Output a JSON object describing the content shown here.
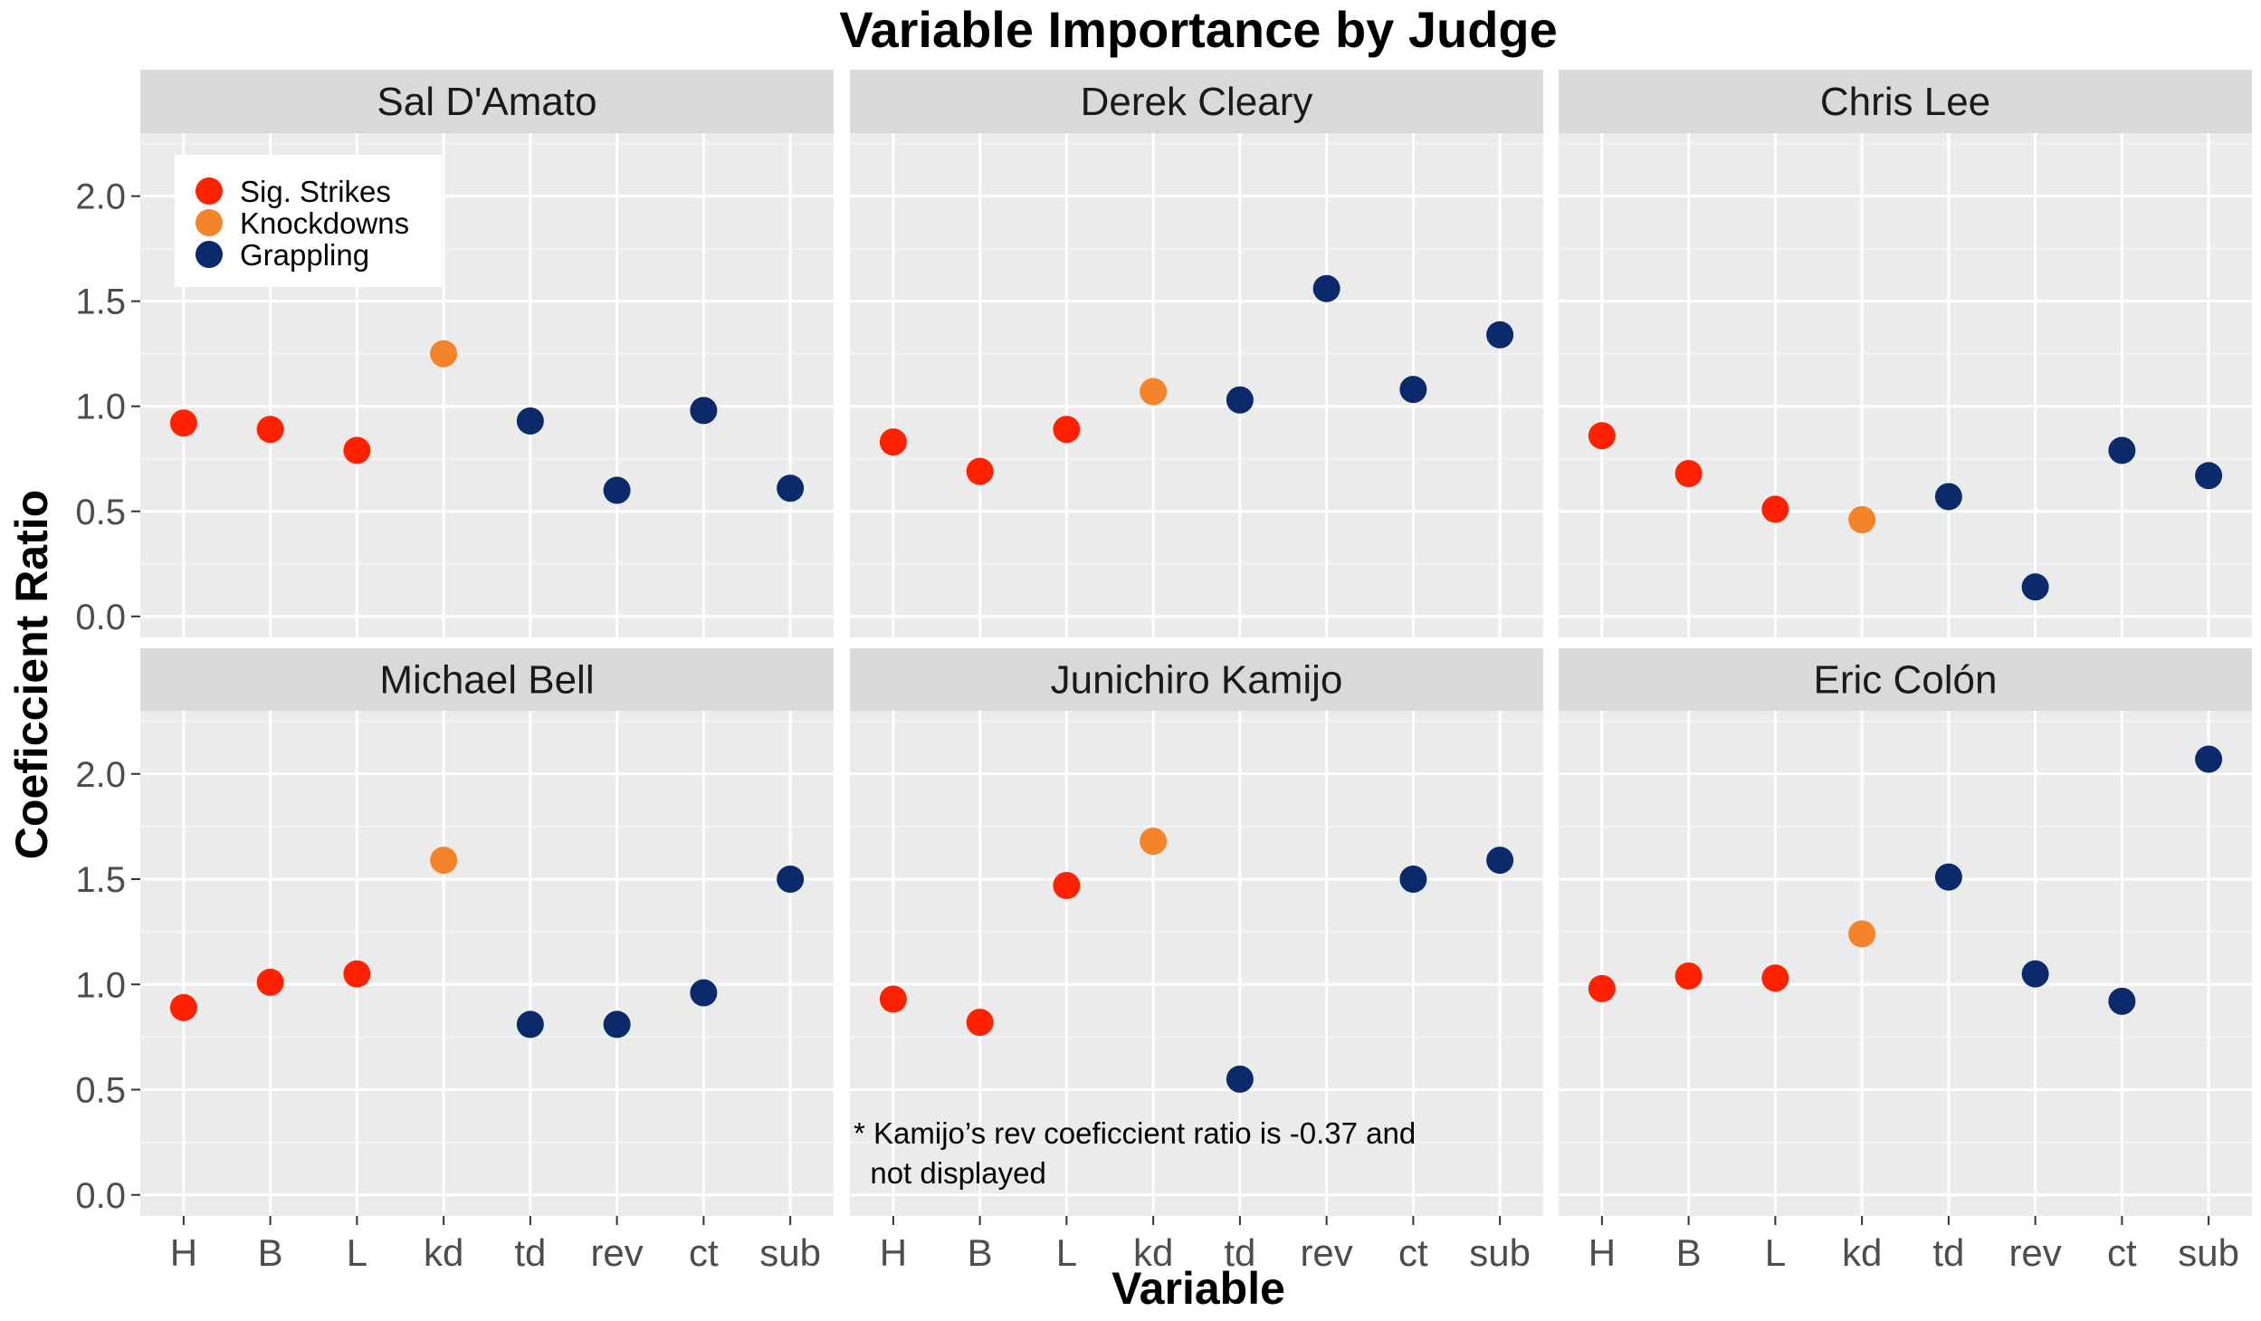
{
  "chart_data": {
    "type": "scatter",
    "title": "Variable Importance by Judge",
    "xlabel": "Variable",
    "ylabel": "Coeficcient Ratio",
    "categories": [
      "H",
      "B",
      "L",
      "kd",
      "td",
      "rev",
      "ct",
      "sub"
    ],
    "ylim": [
      -0.1,
      2.3
    ],
    "yticks": [
      "0.0",
      "0.5",
      "1.0",
      "1.5",
      "2.0"
    ],
    "grid": true,
    "legend_position": "inside top-left of first panel",
    "legend": [
      {
        "name": "Sig. Strikes",
        "color": "#ff2200"
      },
      {
        "name": "Knockdowns",
        "color": "#f5832a"
      },
      {
        "name": "Grappling",
        "color": "#0b2a6b"
      }
    ],
    "series_groups": [
      "Sig. Strikes",
      "Sig. Strikes",
      "Sig. Strikes",
      "Knockdowns",
      "Grappling",
      "Grappling",
      "Grappling",
      "Grappling"
    ],
    "panels": [
      {
        "judge": "Sal D'Amato",
        "values": [
          0.92,
          0.89,
          0.79,
          1.25,
          0.93,
          0.6,
          0.98,
          0.61
        ]
      },
      {
        "judge": "Derek Cleary",
        "values": [
          0.83,
          0.69,
          0.89,
          1.07,
          1.03,
          1.56,
          1.08,
          1.34
        ]
      },
      {
        "judge": "Chris Lee",
        "values": [
          0.86,
          0.68,
          0.51,
          0.46,
          0.57,
          0.14,
          0.79,
          0.67
        ]
      },
      {
        "judge": "Michael Bell",
        "values": [
          0.89,
          1.01,
          1.05,
          1.59,
          0.81,
          0.81,
          0.96,
          1.5
        ]
      },
      {
        "judge": "Junichiro Kamijo",
        "values": [
          0.93,
          0.82,
          1.47,
          1.68,
          0.55,
          null,
          1.5,
          1.59
        ]
      },
      {
        "judge": "Eric Colón",
        "values": [
          0.98,
          1.04,
          1.03,
          1.24,
          1.51,
          1.05,
          0.92,
          2.07
        ]
      }
    ],
    "annotation": {
      "panel": 4,
      "lines": [
        "* Kamijo’s rev coeficcient ratio is -0.37 and",
        "  not displayed"
      ]
    }
  }
}
